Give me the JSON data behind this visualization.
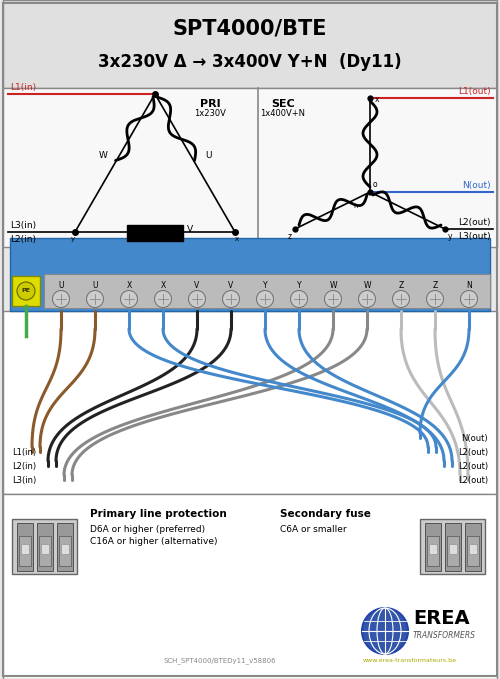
{
  "title_line1": "SPT4000/BTE",
  "title_line2": "3x230V Δ → 3x400V Y+N  (Dy11)",
  "bg_color": "#e8e8e8",
  "schematic_bg": "#f5f5f5",
  "wire_bg": "#ffffff",
  "footer_bg": "#ffffff",
  "pri_label": "PRI",
  "pri_sublabel": "1x230V",
  "sec_label": "SEC",
  "sec_sublabel": "1x400V+N",
  "L1in": "L1(in)",
  "L2in": "L2(in)",
  "L3in": "L3(in)",
  "L1out": "L1(out)",
  "L2out": "L2(out)",
  "L3out": "L3(out)",
  "Nout": "N(out)",
  "terminal_labels": [
    "U",
    "U",
    "X",
    "X",
    "V",
    "V",
    "Y",
    "Y",
    "W",
    "W",
    "Z",
    "Z",
    "N"
  ],
  "footer_text1": "Primary line protection",
  "footer_text2": "D6A or higher (preferred)",
  "footer_text3": "C16A or higher (alternative)",
  "footer_text4": "Secondary fuse",
  "footer_text5": "C6A or smaller",
  "doc_ref": "SCH_SPT4000/BTEDy11_v58806",
  "erea_text": "EREA",
  "erea_sub": "TRANSFORMERS",
  "erea_website": "www.erea-transformateurs.be"
}
